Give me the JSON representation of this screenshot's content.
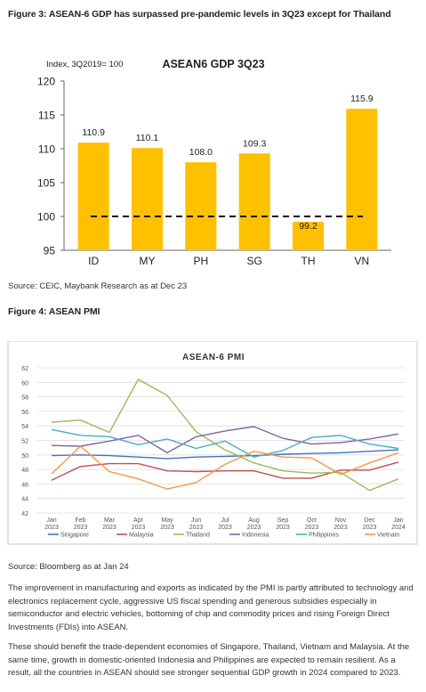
{
  "figure3": {
    "caption": "Figure 3: ASEAN-6 GDP has surpassed pre-pandemic levels in 3Q23 except for Thailand",
    "source": "Source: CEIC, Maybank Research as at Dec 23"
  },
  "figure4": {
    "caption": "Figure 4: ASEAN PMI",
    "source": "Source: Bloomberg as at Jan 24"
  },
  "paragraphs": [
    "The improvement in manufacturing and exports as indicated by the PMI is partly attributed to technology and electronics replacement cycle, aggressive US fiscal spending and generous subsidies especially in semiconductor and electric vehicles, bottoming of chip and commodity prices and rising Foreign Direct Investments (FDIs) into ASEAN.",
    "These should benefit the trade-dependent economies of Singapore, Thailand, Vietnam and Malaysia. At the same time, growth in domestic-oriented Indonesia and Philippines are expected to remain resilient. As a result, all the countries in ASEAN should see stronger sequential GDP growth in 2024 compared to 2023."
  ],
  "chart_data": [
    {
      "type": "bar",
      "title": "ASEAN6 GDP 3Q23",
      "ylabel": "Index, 3Q2019= 100",
      "categories": [
        "ID",
        "MY",
        "PH",
        "SG",
        "TH",
        "VN"
      ],
      "values": [
        110.9,
        110.1,
        108.0,
        109.3,
        99.2,
        115.9
      ],
      "value_labels": [
        "110.9",
        "110.1",
        "108.0",
        "109.3",
        "99.2",
        "115.9"
      ],
      "ylim": [
        95,
        120
      ],
      "yticks": [
        "95",
        "100",
        "105",
        "110",
        "115",
        "120"
      ],
      "reference_line": 100,
      "bar_color": "#FFC000"
    },
    {
      "type": "line",
      "title": "ASEAN-6 PMI",
      "x": [
        "Jan 2023",
        "Feb 2023",
        "Mar 2023",
        "Apr 2023",
        "May 2023",
        "Jun 2023",
        "Jul 2023",
        "Aug 2023",
        "Sep 2023",
        "Oct 2023",
        "Nov 2023",
        "Dec 2023",
        "Jan 2024"
      ],
      "x_top": [
        "Jan",
        "Feb",
        "Mar",
        "Apr",
        "May",
        "Jun",
        "Jul",
        "Aug",
        "Sep",
        "Oct",
        "Nov",
        "Dec",
        "Jan"
      ],
      "x_bottom": [
        "2023",
        "2023",
        "2023",
        "2023",
        "2023",
        "2023",
        "2023",
        "2023",
        "2023",
        "2023",
        "2023",
        "2023",
        "2024"
      ],
      "ylim": [
        42,
        62
      ],
      "yticks": [
        "42",
        "44",
        "46",
        "48",
        "50",
        "52",
        "54",
        "56",
        "58",
        "60",
        "62"
      ],
      "grid": true,
      "legend": "bottom",
      "series": [
        {
          "name": "Singapore",
          "color": "#4472C4",
          "values": [
            49.9,
            50.0,
            49.9,
            49.7,
            49.5,
            49.7,
            49.8,
            49.9,
            50.1,
            50.2,
            50.3,
            50.5,
            50.7
          ]
        },
        {
          "name": "Malaysia",
          "color": "#C0504D",
          "values": [
            46.5,
            48.4,
            48.8,
            48.8,
            47.8,
            47.7,
            47.8,
            47.8,
            46.8,
            46.8,
            47.9,
            47.9,
            49.0
          ]
        },
        {
          "name": "Thailand",
          "color": "#9BBB59",
          "values": [
            54.5,
            54.8,
            53.1,
            60.4,
            58.2,
            53.2,
            50.7,
            48.9,
            47.8,
            47.5,
            47.6,
            45.1,
            46.7
          ]
        },
        {
          "name": "Indonesia",
          "color": "#8064A2",
          "values": [
            51.3,
            51.2,
            51.9,
            52.7,
            50.3,
            52.5,
            53.3,
            53.9,
            52.3,
            51.5,
            51.7,
            52.2,
            52.9
          ]
        },
        {
          "name": "Philippines",
          "color": "#4BACC6",
          "values": [
            53.5,
            52.7,
            52.5,
            51.4,
            52.2,
            50.9,
            51.9,
            49.7,
            50.6,
            52.4,
            52.7,
            51.5,
            50.9
          ]
        },
        {
          "name": "Vietnam",
          "color": "#F79646",
          "values": [
            47.4,
            51.2,
            47.7,
            46.7,
            45.3,
            46.2,
            48.7,
            50.5,
            49.7,
            49.6,
            47.3,
            48.9,
            50.3
          ]
        }
      ]
    }
  ]
}
